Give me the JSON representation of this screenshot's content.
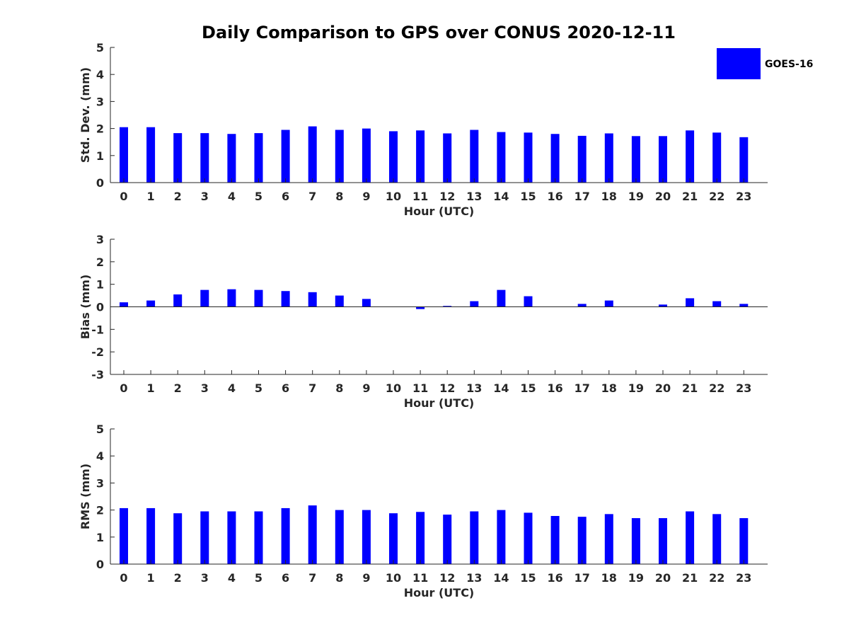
{
  "chart_data": {
    "title": "Daily Comparison to GPS over CONUS 2020-12-11",
    "legend": [
      {
        "name": "GOES-16",
        "color": "#0000ff"
      }
    ],
    "legend_position": "top-right",
    "bar_color": "#0000ff",
    "panels": [
      {
        "type": "bar",
        "xlabel": "Hour (UTC)",
        "ylabel": "Std. Dev. (mm)",
        "ylim": [
          0,
          5
        ],
        "yticks": [
          "0",
          "1",
          "2",
          "3",
          "4",
          "5"
        ],
        "categories": [
          "0",
          "1",
          "2",
          "3",
          "4",
          "5",
          "6",
          "7",
          "8",
          "9",
          "10",
          "11",
          "12",
          "13",
          "14",
          "15",
          "16",
          "17",
          "18",
          "19",
          "20",
          "21",
          "22",
          "23"
        ],
        "series": [
          {
            "name": "GOES-16",
            "values": [
              2.05,
              2.05,
              1.83,
              1.83,
              1.8,
              1.83,
              1.95,
              2.08,
              1.95,
              2.0,
              1.9,
              1.93,
              1.82,
              1.95,
              1.87,
              1.85,
              1.8,
              1.73,
              1.82,
              1.72,
              1.72,
              1.93,
              1.85,
              1.68
            ]
          }
        ]
      },
      {
        "type": "bar",
        "xlabel": "Hour (UTC)",
        "ylabel": "Bias (mm)",
        "ylim": [
          -3,
          3
        ],
        "yticks": [
          "-3",
          "-2",
          "-1",
          "0",
          "1",
          "2",
          "3"
        ],
        "categories": [
          "0",
          "1",
          "2",
          "3",
          "4",
          "5",
          "6",
          "7",
          "8",
          "9",
          "10",
          "11",
          "12",
          "13",
          "14",
          "15",
          "16",
          "17",
          "18",
          "19",
          "20",
          "21",
          "22",
          "23"
        ],
        "series": [
          {
            "name": "GOES-16",
            "values": [
              0.2,
              0.28,
              0.55,
              0.75,
              0.78,
              0.75,
              0.7,
              0.65,
              0.5,
              0.35,
              0.01,
              -0.1,
              0.04,
              0.25,
              0.75,
              0.47,
              0.01,
              0.13,
              0.28,
              0.01,
              0.1,
              0.38,
              0.25,
              0.13
            ]
          }
        ]
      },
      {
        "type": "bar",
        "xlabel": "Hour (UTC)",
        "ylabel": "RMS (mm)",
        "ylim": [
          0,
          5
        ],
        "yticks": [
          "0",
          "1",
          "2",
          "3",
          "4",
          "5"
        ],
        "categories": [
          "0",
          "1",
          "2",
          "3",
          "4",
          "5",
          "6",
          "7",
          "8",
          "9",
          "10",
          "11",
          "12",
          "13",
          "14",
          "15",
          "16",
          "17",
          "18",
          "19",
          "20",
          "21",
          "22",
          "23"
        ],
        "series": [
          {
            "name": "GOES-16",
            "values": [
              2.07,
              2.07,
              1.88,
              1.95,
              1.95,
              1.95,
              2.07,
              2.17,
              2.0,
              2.0,
              1.88,
              1.93,
              1.83,
              1.95,
              2.0,
              1.9,
              1.78,
              1.75,
              1.85,
              1.7,
              1.7,
              1.95,
              1.85,
              1.7
            ]
          }
        ]
      }
    ]
  }
}
